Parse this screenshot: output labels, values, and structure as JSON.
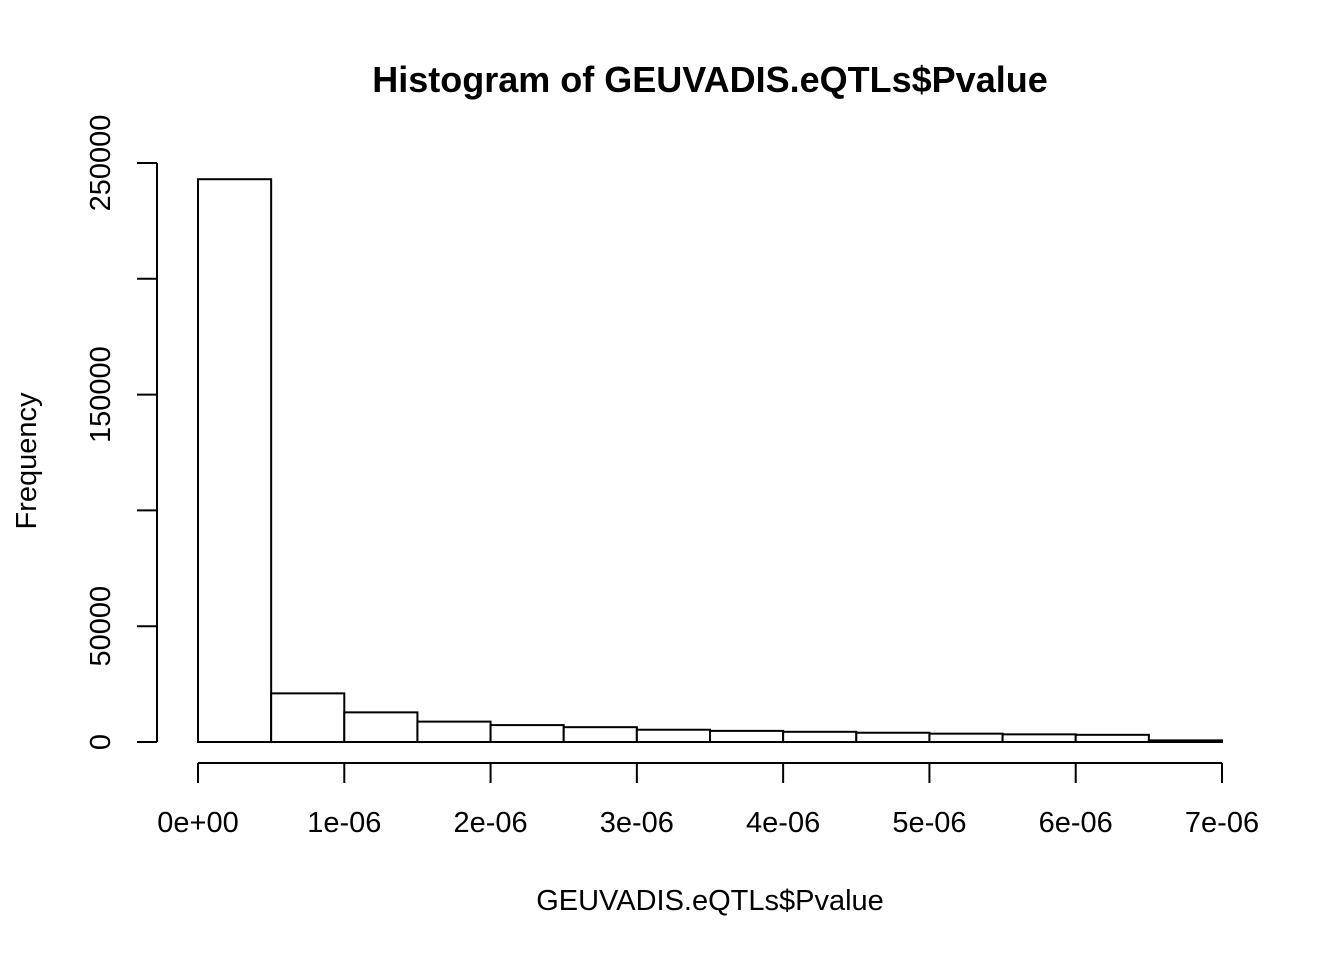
{
  "chart_data": {
    "type": "bar",
    "title": "Histogram of GEUVADIS.eQTLs$Pvalue",
    "xlabel": "GEUVADIS.eQTLs$Pvalue",
    "ylabel": "Frequency",
    "xlim": [
      0,
      7e-06
    ],
    "ylim": [
      0,
      250000
    ],
    "bin_width": 5e-07,
    "bins": [
      {
        "start": 0.0,
        "end": 5e-07,
        "count": 243000
      },
      {
        "start": 5e-07,
        "end": 1e-06,
        "count": 21000
      },
      {
        "start": 1e-06,
        "end": 1.5e-06,
        "count": 12800
      },
      {
        "start": 1.5e-06,
        "end": 2e-06,
        "count": 8800
      },
      {
        "start": 2e-06,
        "end": 2.5e-06,
        "count": 7300
      },
      {
        "start": 2.5e-06,
        "end": 3e-06,
        "count": 6400
      },
      {
        "start": 3e-06,
        "end": 3.5e-06,
        "count": 5300
      },
      {
        "start": 3.5e-06,
        "end": 4e-06,
        "count": 4800
      },
      {
        "start": 4e-06,
        "end": 4.5e-06,
        "count": 4400
      },
      {
        "start": 4.5e-06,
        "end": 5e-06,
        "count": 4000
      },
      {
        "start": 5e-06,
        "end": 5.5e-06,
        "count": 3600
      },
      {
        "start": 5.5e-06,
        "end": 6e-06,
        "count": 3300
      },
      {
        "start": 6e-06,
        "end": 6.5e-06,
        "count": 3100
      },
      {
        "start": 6.5e-06,
        "end": 7e-06,
        "count": 700
      }
    ],
    "x_ticks": [
      {
        "value": 0.0,
        "label": "0e+00"
      },
      {
        "value": 1e-06,
        "label": "1e-06"
      },
      {
        "value": 2e-06,
        "label": "2e-06"
      },
      {
        "value": 3e-06,
        "label": "3e-06"
      },
      {
        "value": 4e-06,
        "label": "4e-06"
      },
      {
        "value": 5e-06,
        "label": "5e-06"
      },
      {
        "value": 6e-06,
        "label": "6e-06"
      },
      {
        "value": 7e-06,
        "label": "7e-06"
      }
    ],
    "y_ticks": [
      {
        "value": 0,
        "label": "0"
      },
      {
        "value": 50000,
        "label": "50000"
      },
      {
        "value": 100000,
        "label": ""
      },
      {
        "value": 150000,
        "label": "150000"
      },
      {
        "value": 200000,
        "label": ""
      },
      {
        "value": 250000,
        "label": "250000"
      }
    ],
    "grid": false,
    "legend": "none"
  }
}
